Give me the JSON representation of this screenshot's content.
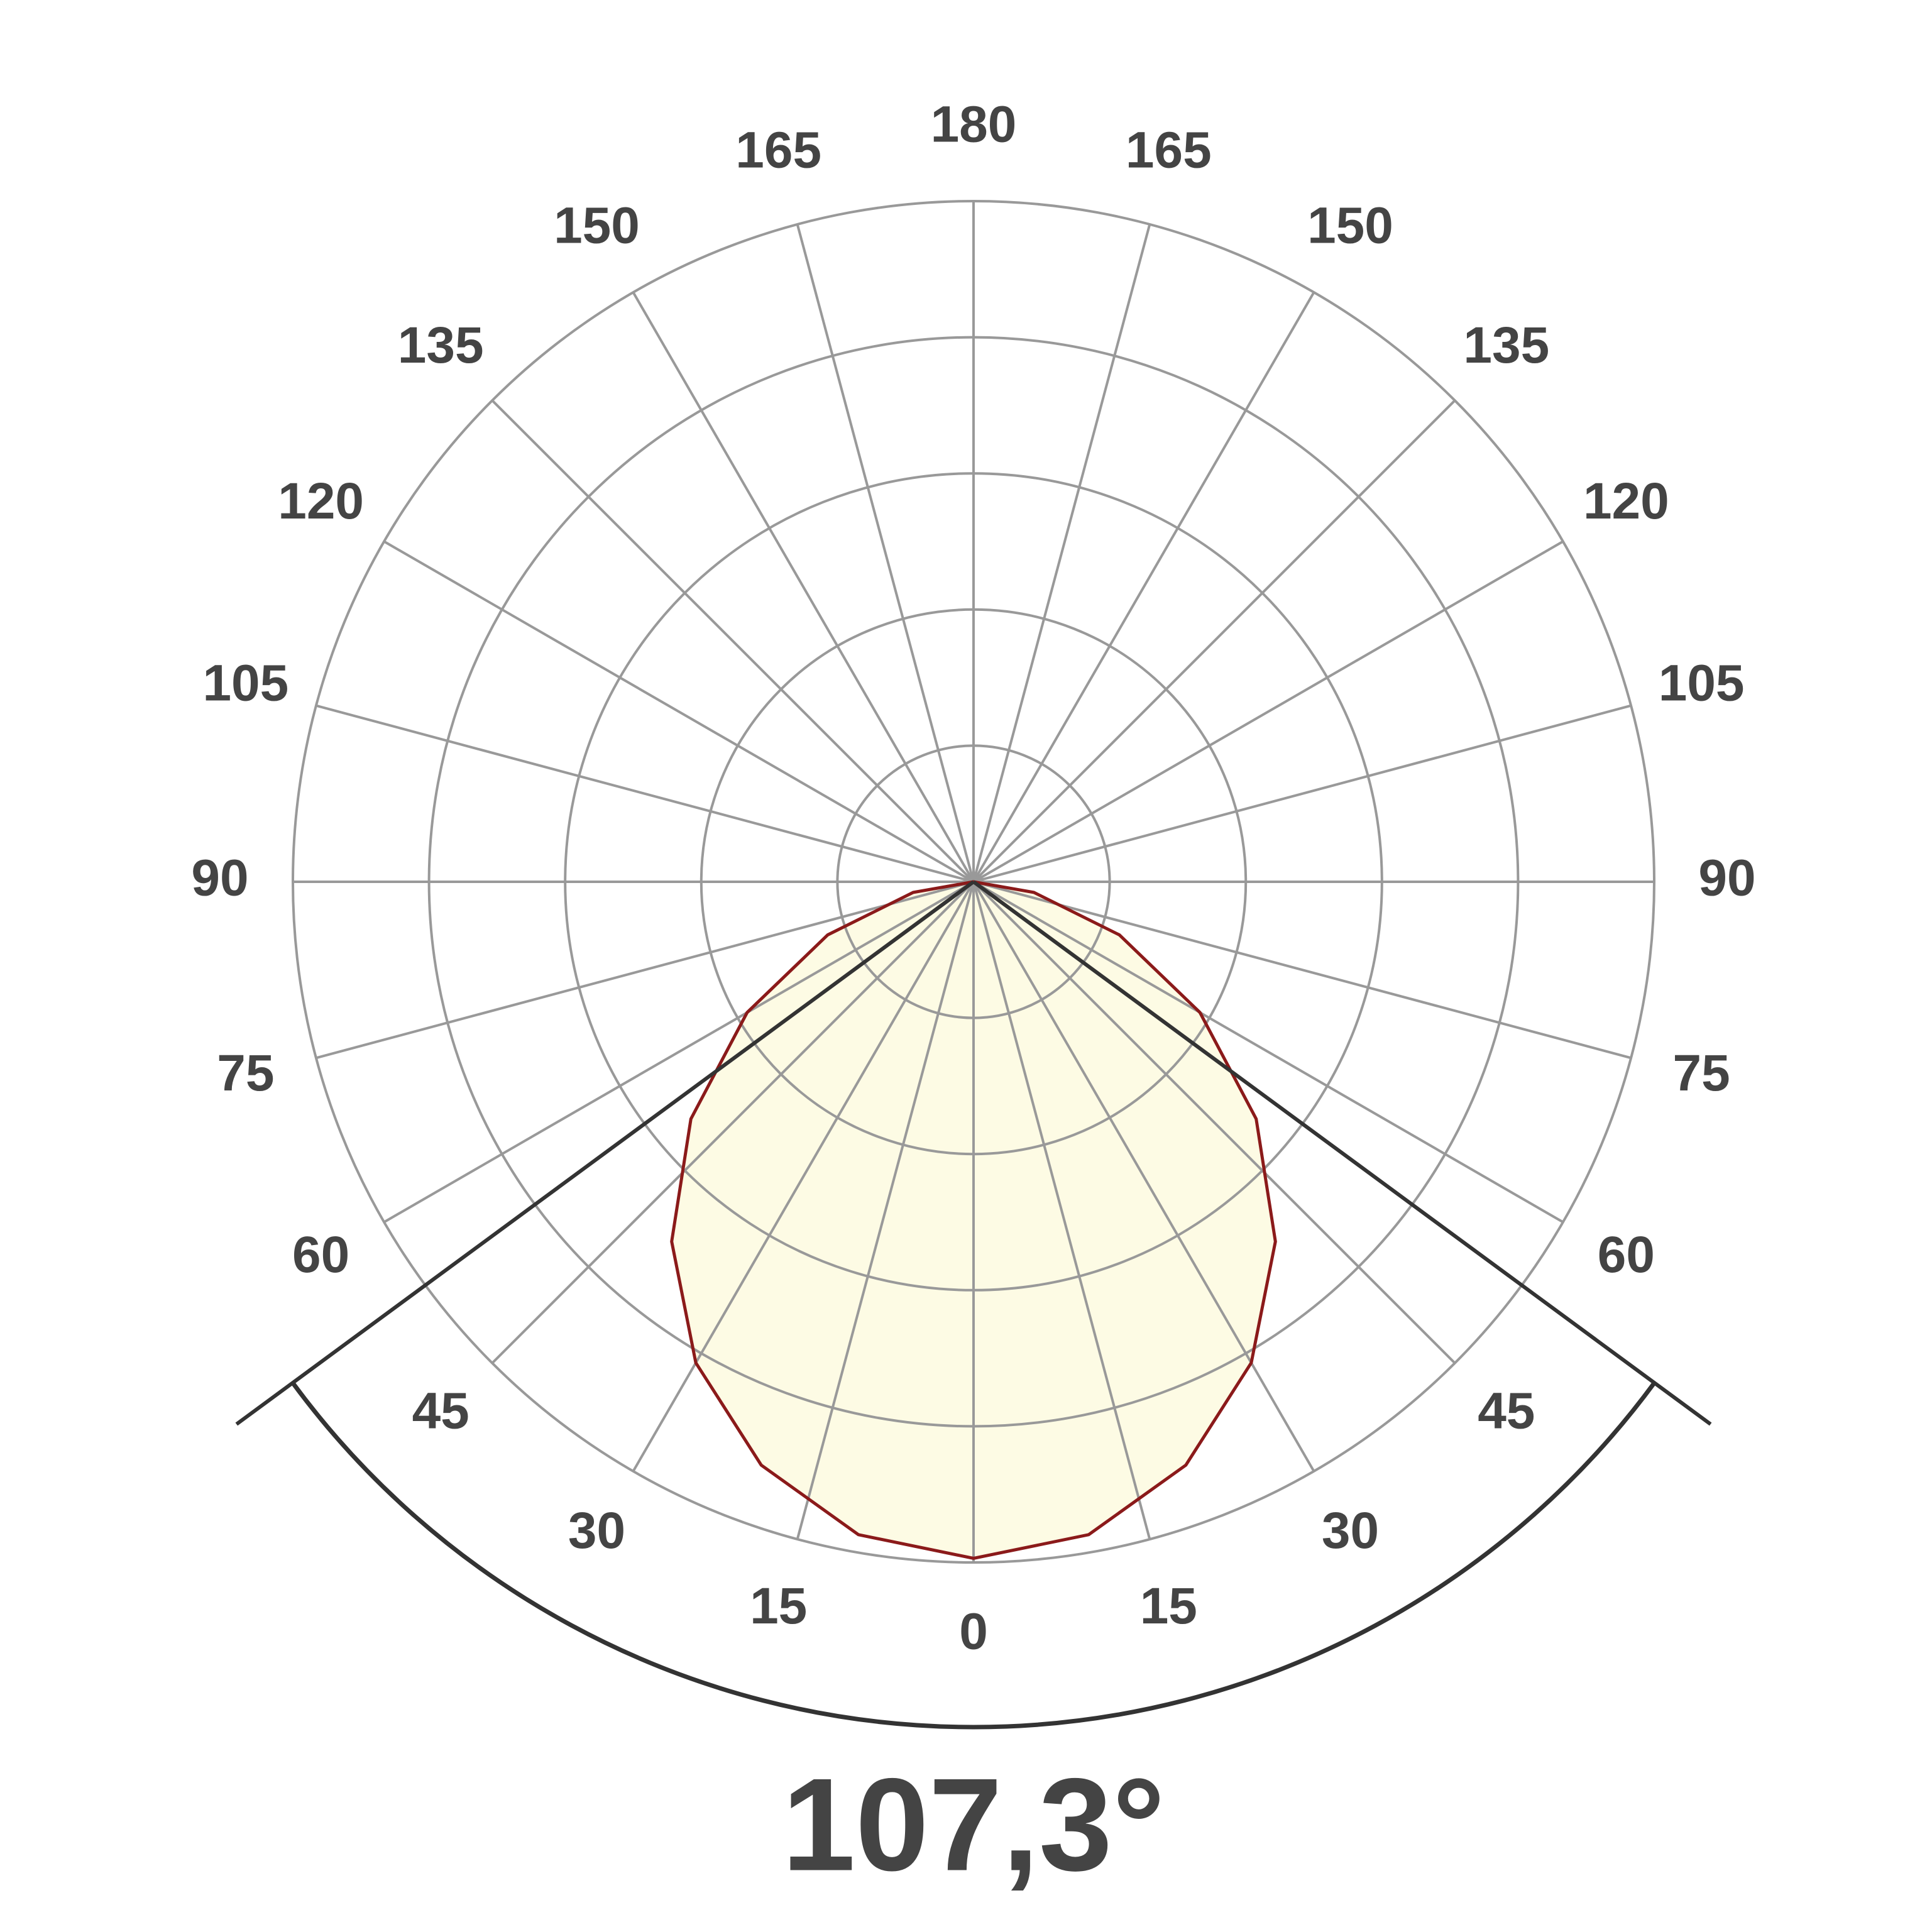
{
  "chart_data": {
    "type": "polar",
    "angles": [
      -90,
      -80,
      -70,
      -60,
      -50,
      -40,
      -30,
      -20,
      -10,
      0,
      10,
      20,
      30,
      40,
      50,
      60,
      70,
      80,
      90
    ],
    "values": [
      0,
      0.45,
      1.14,
      1.92,
      2.71,
      3.45,
      4.08,
      4.56,
      4.87,
      4.97,
      4.87,
      4.56,
      4.08,
      3.45,
      2.71,
      1.92,
      1.14,
      0.45,
      0
    ],
    "color": "#8b1a1a",
    "fill": "#fdfbe4",
    "rlim": [
      0,
      5
    ],
    "rticks": [
      1,
      2,
      3,
      4,
      5
    ],
    "angle_ticks": [
      0,
      15,
      30,
      45,
      60,
      75,
      90,
      105,
      120,
      135,
      150,
      165,
      180
    ],
    "beam_angle": {
      "value": 107.3,
      "label": "107,3°"
    }
  }
}
